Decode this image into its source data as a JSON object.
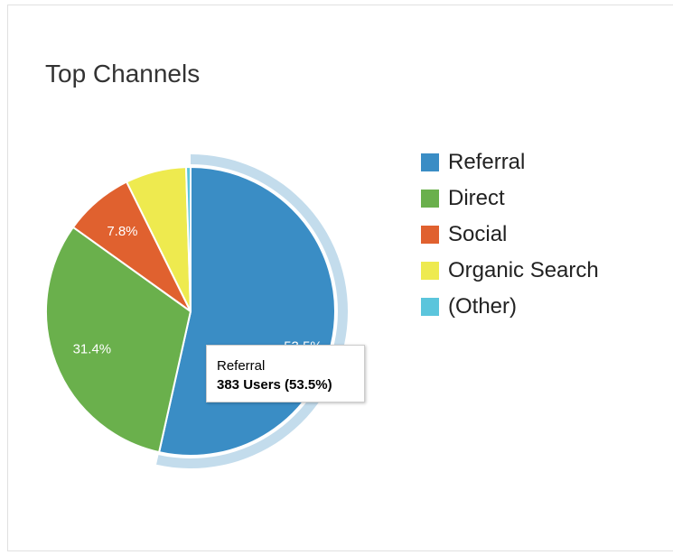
{
  "card": {
    "title": "Top Channels"
  },
  "chart_data": {
    "type": "pie",
    "title": "Top Channels",
    "categories": [
      "Referral",
      "Direct",
      "Social",
      "Organic Search",
      "(Other)"
    ],
    "values": [
      53.5,
      31.4,
      7.8,
      6.8,
      0.5
    ],
    "data_labels": [
      "53.5%",
      "31.4%",
      "7.8%",
      "",
      ""
    ],
    "colors": [
      "#3a8dc5",
      "#6ab04c",
      "#e0612f",
      "#eeea4f",
      "#5bc5dc"
    ],
    "highlight_color": "#c3dcec",
    "highlighted": "Referral",
    "legend_position": "right",
    "tooltip": {
      "label": "Referral",
      "value": "383 Users (53.5%)"
    }
  }
}
